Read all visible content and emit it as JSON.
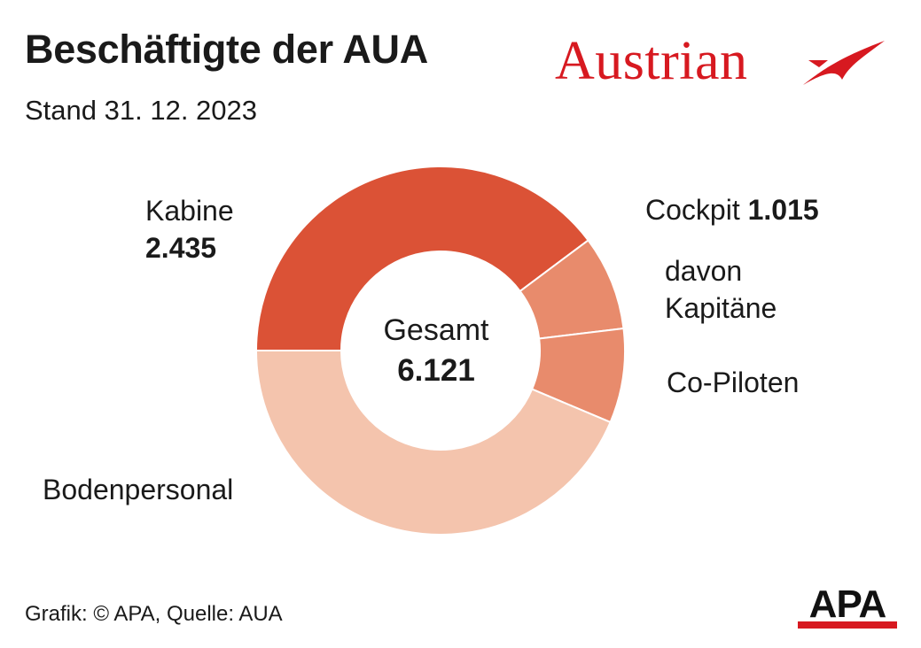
{
  "title": "Beschäftigte der AUA",
  "subtitle": "Stand 31. 12. 2023",
  "logo": {
    "text": "Austrian",
    "color": "#d71920"
  },
  "footer": "Grafik: © APA, Quelle: AUA",
  "agency_logo": "APA",
  "colors": {
    "kabine": "#db5236",
    "cockpit": "#e88b6c",
    "boden": "#f4c4ad",
    "separator": "#ffffff",
    "brand_red": "#d71920"
  },
  "chart_data": {
    "type": "pie",
    "donut": true,
    "title": "Beschäftigte der AUA",
    "subtitle": "Stand 31. 12. 2023",
    "center": {
      "label": "Gesamt",
      "value_label": "6.121",
      "value": 6121
    },
    "slices": [
      {
        "label": "Kabine",
        "value": 2435,
        "value_label": "2.435"
      },
      {
        "label": "davon Kapitäne",
        "value": 508
      },
      {
        "label": "Co-Piloten",
        "value": 507
      },
      {
        "label": "Bodenpersonal",
        "value": 2671
      }
    ],
    "groups": [
      {
        "label": "Cockpit",
        "value": 1015,
        "value_label": "1.015",
        "members": [
          "davon Kapitäne",
          "Co-Piloten"
        ]
      }
    ],
    "labels": {
      "kabine": "Kabine",
      "kabine_value": "2.435",
      "cockpit": "Cockpit",
      "cockpit_value": "1.015",
      "kapitaene_line1": "davon",
      "kapitaene_line2": "Kapitäne",
      "copiloten": "Co-Piloten",
      "boden": "Bodenpersonal"
    }
  }
}
